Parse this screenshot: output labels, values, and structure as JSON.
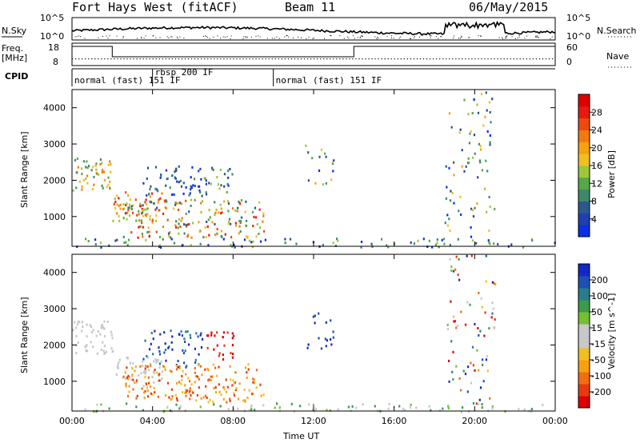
{
  "header": {
    "station": "Fort Hays West (fitACF)",
    "beam": "Beam 11",
    "date": "06/May/2015"
  },
  "left_labels": {
    "nsky": "N.Sky",
    "freq": "Freq.",
    "freq_unit": "[MHz]",
    "cpid": "CPID"
  },
  "right_labels": {
    "nsearch": "N.Search",
    "nave": "Nave"
  },
  "summary_axes": {
    "sky_ticks": [
      "10^5",
      "10^0"
    ],
    "search_ticks": [
      "10^5",
      "10^0"
    ],
    "freq_ticks": [
      "18",
      "8"
    ],
    "nave_ticks": [
      "60",
      "0"
    ]
  },
  "cpid_segments": [
    {
      "start_h": 0,
      "end_h": 4.0,
      "label": "normal (fast) 151 IF"
    },
    {
      "start_h": 4.0,
      "end_h": 10.0,
      "label": "rbsp 200 IF"
    },
    {
      "start_h": 10.0,
      "end_h": 24,
      "label": "normal (fast) 151 IF"
    }
  ],
  "freq_steps": [
    {
      "start_h": 0,
      "end_h": 2.0,
      "level": "high"
    },
    {
      "start_h": 2.0,
      "end_h": 14.0,
      "level": "low"
    },
    {
      "start_h": 14.0,
      "end_h": 24,
      "level": "high"
    }
  ],
  "xaxis": {
    "label": "Time UT",
    "ticks": [
      "00:00",
      "04:00",
      "08:00",
      "12:00",
      "16:00",
      "20:00",
      "00:00"
    ],
    "range_h": [
      0,
      24
    ]
  },
  "yaxis": {
    "label": "Slant Range [km]",
    "ticks": [
      "1000",
      "2000",
      "3000",
      "4000"
    ],
    "range_km": [
      180,
      4500
    ]
  },
  "colorbars": {
    "power": {
      "label": "Power [dB]",
      "ticks": [
        "4",
        "8",
        "12",
        "16",
        "20",
        "24",
        "28"
      ],
      "colors": [
        "#0a2ee6",
        "#1f3fb3",
        "#2a5a8a",
        "#3d8a6a",
        "#55a84a",
        "#9dc63a",
        "#f0c020",
        "#f7a010",
        "#f27a10",
        "#ee4a10",
        "#e81a10",
        "#e00000"
      ]
    },
    "velocity": {
      "label": "Velocity [m s^-1]",
      "ticks": [
        "200",
        "100",
        "50",
        "15",
        "-15",
        "-50",
        "-100",
        "-200"
      ],
      "colors": [
        "#1428c8",
        "#1e50b4",
        "#2a7c8a",
        "#3c9a4a",
        "#74c030",
        "#c8c8c8",
        "#c8c8c8",
        "#f0c020",
        "#f7a010",
        "#f06e10",
        "#e83a10",
        "#e00000"
      ]
    }
  },
  "chart_data": [
    {
      "type": "heatmap",
      "title": "Power",
      "xlabel": "Time UT",
      "ylabel": "Slant Range [km]",
      "xlim_hours": [
        0,
        24
      ],
      "ylim_km": [
        180,
        4500
      ],
      "colorbar": {
        "label": "Power [dB]",
        "range": [
          0,
          30
        ]
      },
      "echo_regions": [
        {
          "time_h": [
            0,
            2.0
          ],
          "range_km": [
            1750,
            2700
          ],
          "value_db": "10-20"
        },
        {
          "time_h": [
            2.0,
            4.5
          ],
          "range_km": [
            900,
            1700
          ],
          "value_db": "16-28"
        },
        {
          "time_h": [
            3.5,
            6.5
          ],
          "range_km": [
            1400,
            2450
          ],
          "value_db": "4-12"
        },
        {
          "time_h": [
            6.5,
            8.0
          ],
          "range_km": [
            1600,
            2400
          ],
          "value_db": "8-16"
        },
        {
          "time_h": [
            2.5,
            9.5
          ],
          "range_km": [
            450,
            1500
          ],
          "value_db": "8-28"
        },
        {
          "time_h": [
            11.5,
            13.0
          ],
          "range_km": [
            1900,
            3000
          ],
          "value_db": "4-20"
        },
        {
          "time_h": [
            18.5,
            21.0
          ],
          "range_km": [
            300,
            4500
          ],
          "value_db": "4-20"
        },
        {
          "time_h": [
            0,
            24
          ],
          "range_km": [
            180,
            420
          ],
          "value_db": "4-16"
        }
      ]
    },
    {
      "type": "heatmap",
      "title": "Velocity",
      "xlabel": "Time UT",
      "ylabel": "Slant Range [km]",
      "xlim_hours": [
        0,
        24
      ],
      "ylim_km": [
        180,
        4500
      ],
      "colorbar": {
        "label": "Velocity [m s^-1]",
        "range": [
          -250,
          250
        ]
      },
      "echo_regions": [
        {
          "time_h": [
            0,
            2.0
          ],
          "range_km": [
            1750,
            2700
          ],
          "value_ms": "-15 to 15"
        },
        {
          "time_h": [
            2.0,
            4.5
          ],
          "range_km": [
            900,
            1700
          ],
          "value_ms": "-15 to 15"
        },
        {
          "time_h": [
            6.0,
            8.0
          ],
          "range_km": [
            1700,
            2400
          ],
          "value_ms": "-200"
        },
        {
          "time_h": [
            4.5,
            9.5
          ],
          "range_km": [
            700,
            1500
          ],
          "value_ms": "-100 to 50"
        },
        {
          "time_h": [
            11.5,
            13.0
          ],
          "range_km": [
            1900,
            3000
          ],
          "value_ms": "100 to 200"
        },
        {
          "time_h": [
            18.5,
            21.0
          ],
          "range_km": [
            300,
            4500
          ],
          "value_ms": "-200 to 200"
        }
      ]
    }
  ]
}
